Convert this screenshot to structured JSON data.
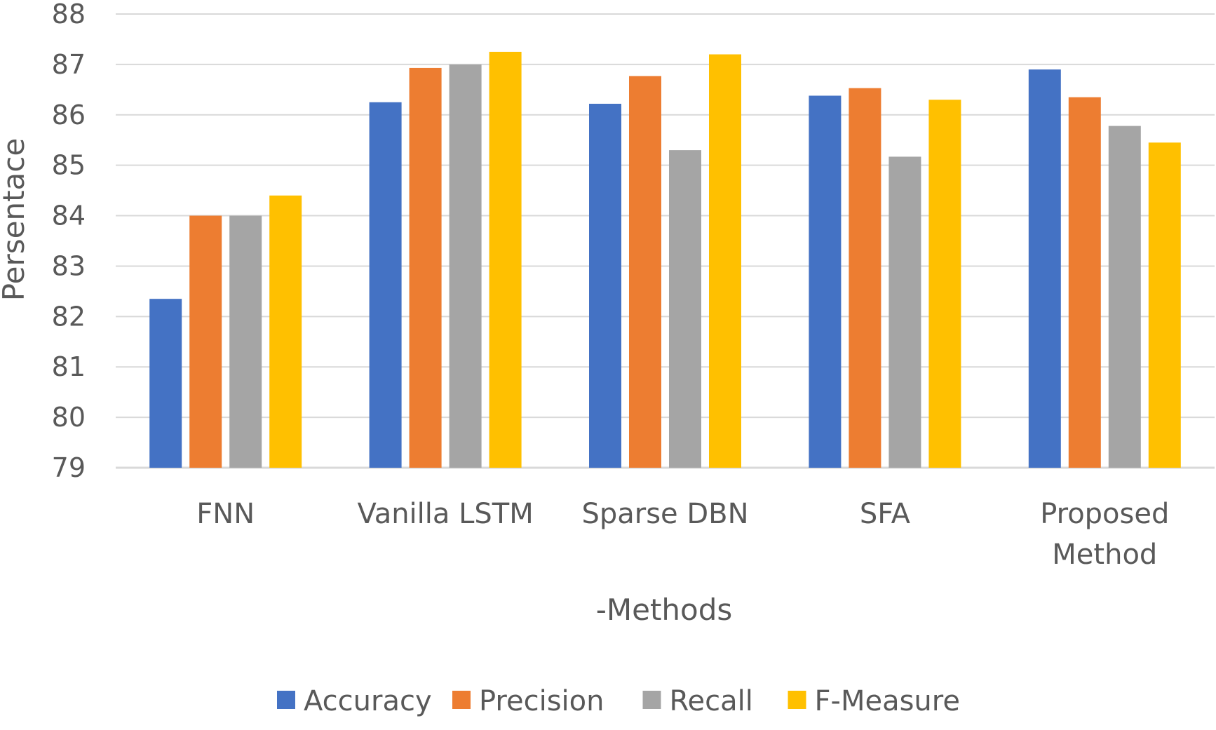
{
  "chart_data": {
    "type": "bar",
    "title": "",
    "xlabel": "-Methods",
    "ylabel": "Persentace",
    "ylim": [
      79,
      88
    ],
    "yticks": [
      79,
      80,
      81,
      82,
      83,
      84,
      85,
      86,
      87,
      88
    ],
    "grid": true,
    "legend_position": "bottom",
    "categories": [
      [
        "FNN"
      ],
      [
        "Vanilla LSTM"
      ],
      [
        "Sparse DBN"
      ],
      [
        "SFA"
      ],
      [
        "Proposed",
        "Method"
      ]
    ],
    "series": [
      {
        "name": "Accuracy",
        "color": "#4472C4",
        "values": [
          82.35,
          86.25,
          86.22,
          86.38,
          86.9
        ]
      },
      {
        "name": "Precision",
        "color": "#ED7D31",
        "values": [
          84.0,
          86.93,
          86.77,
          86.53,
          86.35
        ]
      },
      {
        "name": "Recall",
        "color": "#A5A5A5",
        "values": [
          84.0,
          87.0,
          85.3,
          85.17,
          85.78
        ]
      },
      {
        "name": "F-Measure",
        "color": "#FFC000",
        "values": [
          84.4,
          87.25,
          87.2,
          86.3,
          85.45
        ]
      }
    ],
    "gridline_color": "#D9D9D9",
    "text_color": "#595959"
  }
}
